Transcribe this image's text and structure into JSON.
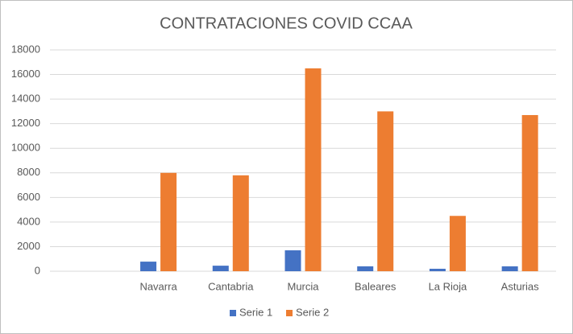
{
  "chart_data": {
    "type": "bar",
    "title": "CONTRATACIONES COVID CCAA",
    "categories": [
      null,
      "Navarra",
      "Cantabria",
      "Murcia",
      "Baleares",
      "La Rioja",
      "Asturias"
    ],
    "series": [
      {
        "name": "Serie 1",
        "color": "#4472c4",
        "values": [
          null,
          780,
          450,
          1700,
          400,
          200,
          400
        ]
      },
      {
        "name": "Serie 2",
        "color": "#ed7d31",
        "values": [
          null,
          8000,
          7800,
          16500,
          13000,
          4500,
          12700
        ]
      }
    ],
    "ylim": [
      0,
      18000
    ],
    "yticks": [
      0,
      2000,
      4000,
      6000,
      8000,
      10000,
      12000,
      14000,
      16000,
      18000
    ],
    "grid": true,
    "legend": "bottom"
  }
}
